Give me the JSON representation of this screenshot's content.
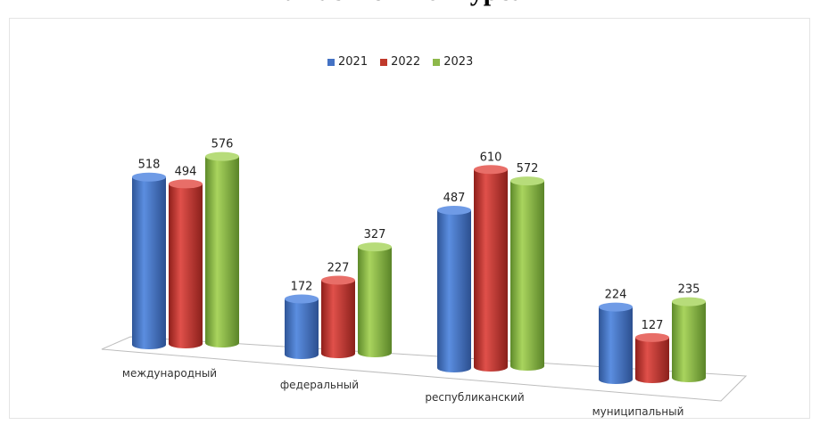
{
  "title": "Участие в конкурсах",
  "colors": {
    "2021": "#4472c4",
    "2022": "#c0392b",
    "2023": "#8db84a"
  },
  "chart_data": {
    "type": "bar",
    "title": "Участие в конкурсах",
    "categories": [
      "международный",
      "федеральный",
      "республиканский",
      "муниципальный"
    ],
    "series": [
      {
        "name": "2021",
        "values": [
          518,
          172,
          487,
          224
        ]
      },
      {
        "name": "2022",
        "values": [
          494,
          227,
          610,
          127
        ]
      },
      {
        "name": "2023",
        "values": [
          576,
          327,
          572,
          235
        ]
      }
    ],
    "legend_position": "top",
    "data_labels": true,
    "grid": false,
    "ylim": [
      0,
      650
    ]
  }
}
